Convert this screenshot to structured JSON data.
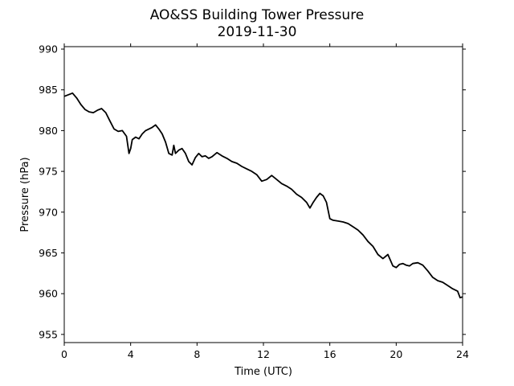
{
  "chart_data": {
    "type": "line",
    "title": "AO&SS Building Tower Pressure",
    "subtitle": "2019-11-30",
    "xlabel": "Time (UTC)",
    "ylabel": "Pressure (hPa)",
    "xlim": [
      0,
      24
    ],
    "ylim": [
      954,
      990.3
    ],
    "xticks": [
      0,
      4,
      8,
      12,
      16,
      20,
      24
    ],
    "yticks": [
      955,
      960,
      965,
      970,
      975,
      980,
      985,
      990
    ],
    "grid": false,
    "legend": "none",
    "line_color": "#000000",
    "series": [
      {
        "x": [
          0,
          0.25,
          0.5,
          0.75,
          1.0,
          1.25,
          1.5,
          1.75,
          2.0,
          2.25,
          2.5,
          2.75,
          3.0,
          3.25,
          3.5,
          3.75,
          3.9,
          4.0,
          4.1,
          4.3,
          4.5,
          4.7,
          4.9,
          5.1,
          5.3,
          5.5,
          5.7,
          5.9,
          6.1,
          6.3,
          6.5,
          6.6,
          6.7,
          6.9,
          7.1,
          7.3,
          7.5,
          7.7,
          7.9,
          8.1,
          8.3,
          8.5,
          8.7,
          8.9,
          9.2,
          9.5,
          9.8,
          10.1,
          10.4,
          10.7,
          11.0,
          11.3,
          11.6,
          11.9,
          12.2,
          12.5,
          12.8,
          13.1,
          13.4,
          13.7,
          14.0,
          14.3,
          14.6,
          14.8,
          15.0,
          15.2,
          15.4,
          15.6,
          15.8,
          16.0,
          16.2,
          16.5,
          16.8,
          17.1,
          17.4,
          17.7,
          18.0,
          18.3,
          18.6,
          18.9,
          19.2,
          19.5,
          19.8,
          20.0,
          20.2,
          20.4,
          20.6,
          20.8,
          21.0,
          21.3,
          21.6,
          21.9,
          22.2,
          22.5,
          22.8,
          23.1,
          23.4,
          23.7,
          23.85,
          24.0
        ],
        "y": [
          984.2,
          984.4,
          984.6,
          984.0,
          983.2,
          982.6,
          982.3,
          982.2,
          982.5,
          982.7,
          982.2,
          981.2,
          980.2,
          979.9,
          980.0,
          979.3,
          977.2,
          977.8,
          978.9,
          979.2,
          979.0,
          979.6,
          980.0,
          980.2,
          980.4,
          980.7,
          980.2,
          979.6,
          978.6,
          977.2,
          977.0,
          978.2,
          977.2,
          977.6,
          977.8,
          977.2,
          976.2,
          975.8,
          976.7,
          977.2,
          976.8,
          976.9,
          976.6,
          976.8,
          977.3,
          976.9,
          976.6,
          976.2,
          976.0,
          975.6,
          975.3,
          975.0,
          974.6,
          973.8,
          974.0,
          974.5,
          974.0,
          973.5,
          973.2,
          972.8,
          972.2,
          971.8,
          971.2,
          970.5,
          971.2,
          971.8,
          972.3,
          972.0,
          971.2,
          969.2,
          969.0,
          968.9,
          968.8,
          968.6,
          968.2,
          967.8,
          967.2,
          966.4,
          965.8,
          964.8,
          964.3,
          964.8,
          963.4,
          963.2,
          963.6,
          963.7,
          963.5,
          963.4,
          963.7,
          963.8,
          963.5,
          962.8,
          962.0,
          961.6,
          961.4,
          961.0,
          960.6,
          960.3,
          959.5,
          959.6
        ]
      }
    ]
  }
}
